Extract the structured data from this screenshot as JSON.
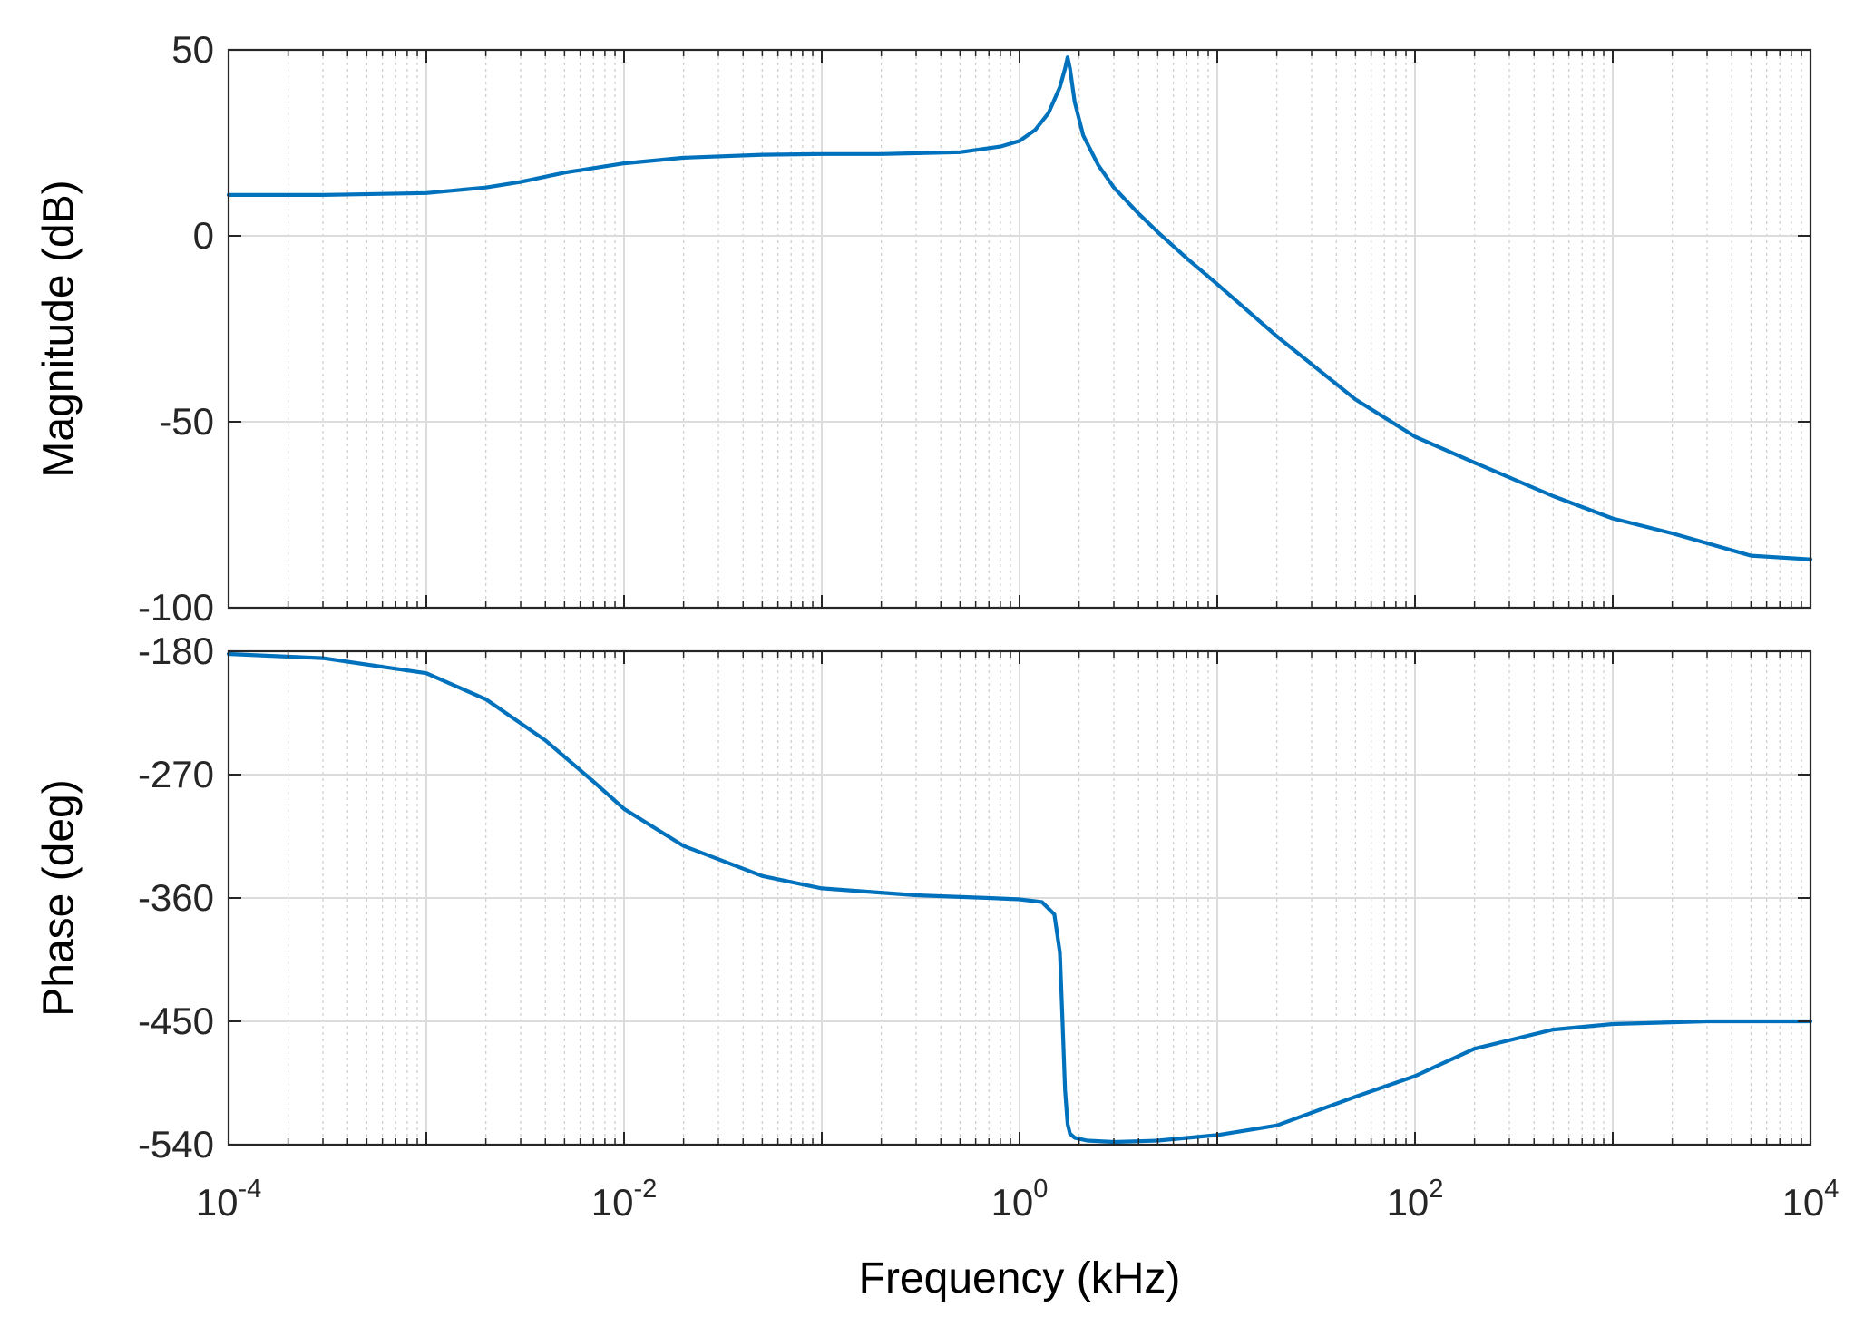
{
  "chart_data": [
    {
      "type": "line",
      "panel": "magnitude",
      "ylabel": "Magnitude (dB)",
      "xscale": "log",
      "xlim": [
        0.0001,
        10000
      ],
      "ylim": [
        -100,
        50
      ],
      "yticks": [
        "50",
        "0",
        "-50",
        "-100"
      ],
      "ytick_values": [
        50,
        0,
        -50,
        -100
      ],
      "grid": true,
      "color": "#0072BD",
      "series": [
        {
          "x": [
            0.0001,
            0.0003,
            0.001,
            0.002,
            0.003,
            0.005,
            0.01,
            0.02,
            0.05,
            0.1,
            0.2,
            0.5,
            0.8,
            1.0,
            1.2,
            1.4,
            1.6,
            1.7,
            1.75,
            1.8,
            1.9,
            2.1,
            2.5,
            3,
            4,
            5,
            7,
            10,
            20,
            50,
            100,
            200,
            500,
            1000,
            2000,
            5000,
            10000
          ],
          "y": [
            11,
            11,
            11.5,
            13,
            14.5,
            17,
            19.5,
            21,
            21.8,
            22,
            22,
            22.5,
            24,
            25.5,
            28.5,
            33,
            40,
            45,
            48,
            45,
            36,
            27,
            19,
            13,
            6,
            1,
            -6,
            -13,
            -27,
            -44,
            -54,
            -61,
            -70,
            -76,
            -80,
            -86,
            -87
          ]
        }
      ]
    },
    {
      "type": "line",
      "panel": "phase",
      "ylabel": "Phase (deg)",
      "xlabel": "Frequency  (kHz)",
      "xscale": "log",
      "xlim": [
        0.0001,
        10000
      ],
      "ylim": [
        -540,
        -180
      ],
      "yticks": [
        "-180",
        "-270",
        "-360",
        "-450",
        "-540"
      ],
      "ytick_values": [
        -180,
        -270,
        -360,
        -450,
        -540
      ],
      "xticks": [
        {
          "base": "10",
          "exp": "-4",
          "value": 0.0001
        },
        {
          "base": "10",
          "exp": "-2",
          "value": 0.01
        },
        {
          "base": "10",
          "exp": "0",
          "value": 1
        },
        {
          "base": "10",
          "exp": "2",
          "value": 100
        },
        {
          "base": "10",
          "exp": "4",
          "value": 10000
        }
      ],
      "grid": true,
      "color": "#0072BD",
      "series": [
        {
          "x": [
            0.0001,
            0.0003,
            0.001,
            0.002,
            0.004,
            0.007,
            0.01,
            0.02,
            0.05,
            0.1,
            0.3,
            0.7,
            1.0,
            1.3,
            1.5,
            1.6,
            1.65,
            1.7,
            1.75,
            1.8,
            1.9,
            2.2,
            3,
            5,
            10,
            20,
            50,
            100,
            200,
            500,
            1000,
            3000,
            10000
          ],
          "y": [
            -182,
            -185,
            -196,
            -215,
            -245,
            -275,
            -295,
            -322,
            -344,
            -353,
            -358,
            -360,
            -361,
            -363,
            -372,
            -400,
            -450,
            -500,
            -525,
            -532,
            -535,
            -537,
            -538,
            -537,
            -533,
            -526,
            -505,
            -490,
            -470,
            -456,
            -452,
            -450,
            -450
          ]
        }
      ]
    }
  ]
}
